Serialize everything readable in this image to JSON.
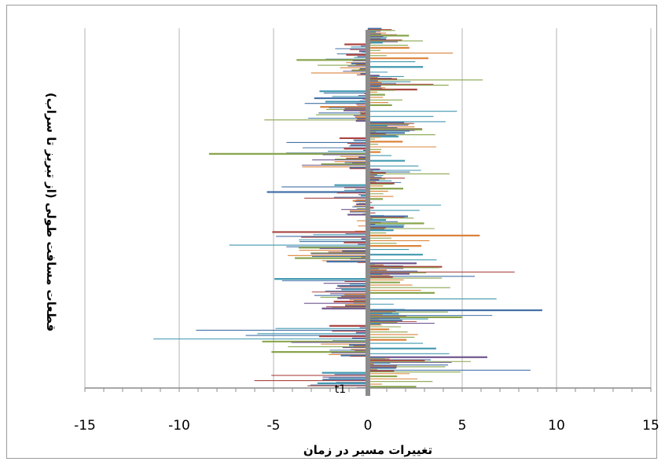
{
  "chart_data": {
    "type": "bar",
    "orientation": "horizontal",
    "xlabel": "تغییرات مسیر در زمان",
    "ylabel": "قطعات مسافت طولی (از تبریز تا سراب)",
    "xlim": [
      -15,
      15
    ],
    "x_ticks": [
      "-15",
      "-10",
      "-5",
      "0",
      "5",
      "10",
      "15"
    ],
    "grid": "vertical",
    "legend": "none",
    "annotation": "t1",
    "series_colors": [
      "#4572A7",
      "#AA4643",
      "#89A54E",
      "#71588F",
      "#4198AF",
      "#DB843D"
    ],
    "segments_rows": [
      [
        -2.9,
        3.0,
        8.0,
        -1.5,
        2.0,
        1.2
      ],
      [
        -1.4,
        5.5,
        6.5,
        -2.2,
        3.5,
        1.0
      ],
      [
        -4.3,
        2.8,
        4.5,
        -3.6,
        1.5,
        -1.1
      ],
      [
        -2.5,
        5.8,
        6.8,
        -1.8,
        4.0,
        2.2
      ],
      [
        -3.9,
        3.2,
        5.5,
        -1.0,
        2.0,
        1.4
      ],
      [
        -5.9,
        2.0,
        7.0,
        -2.6,
        6.0,
        -2.0
      ],
      [
        -4.4,
        4.6,
        7.5,
        -3.8,
        3.2,
        2.5
      ],
      [
        -3.0,
        3.6,
        9.5,
        -2.0,
        1.8,
        1.6
      ],
      [
        -7.9,
        6.0,
        7.8,
        -3.4,
        2.6,
        -1.5
      ],
      [
        -3.6,
        2.5,
        4.0,
        -1.2,
        4.8,
        0.8
      ],
      [
        -2.1,
        3.0,
        8.5,
        -4.2,
        3.3,
        1.2
      ],
      [
        -1.0,
        2.5,
        4.5,
        -2.6,
        1.5,
        1.0
      ],
      [
        -3.4,
        3.0,
        6.0,
        -1.5,
        2.2,
        -1.8
      ],
      [
        -8.2,
        9.5,
        7.6,
        -5.4,
        3.0,
        2.0
      ],
      [
        -9.1,
        5.0,
        8.0,
        -6.7,
        4.5,
        -2.2
      ],
      [
        -8.4,
        8.0,
        9.0,
        -3.6,
        2.0,
        1.8
      ],
      [
        -4.8,
        5.0,
        7.0,
        -3.0,
        10.0,
        3.2
      ],
      [
        -4.2,
        4.5,
        6.5,
        -2.5,
        5.0,
        -4.3
      ],
      [
        -11.4,
        6.0,
        8.2,
        -4.6,
        3.0,
        1.5
      ],
      [
        -10.5,
        5.0,
        11.0,
        -7.4,
        4.0,
        2.2
      ],
      [
        -9.5,
        6.5,
        7.6,
        -3.8,
        2.4,
        -2.6
      ],
      [
        -10.0,
        5.0,
        9.0,
        -7.0,
        3.0,
        2.0
      ],
      [
        -6.6,
        4.5,
        7.0,
        -9.8,
        5.5,
        2.6
      ]
    ]
  }
}
